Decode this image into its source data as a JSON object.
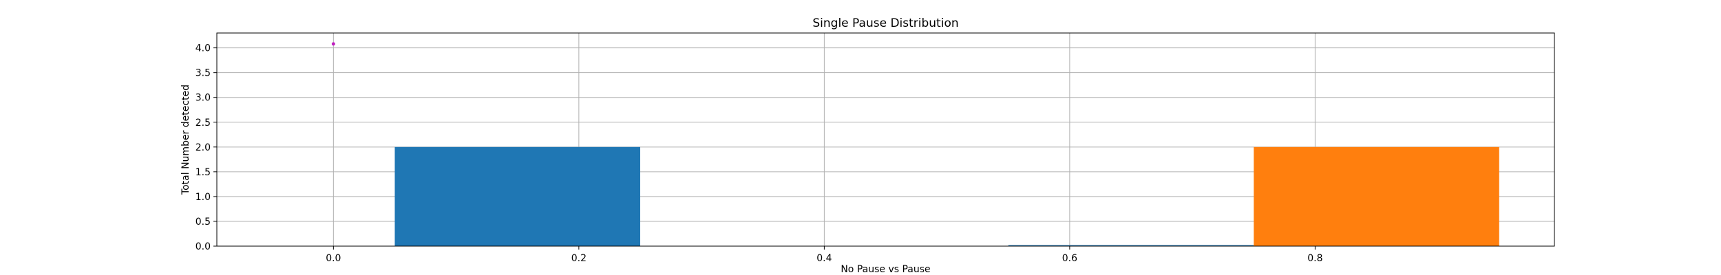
{
  "chart_data": {
    "type": "bar",
    "title": "Single Pause Distribution",
    "xlabel": "No Pause vs Pause",
    "ylabel": "Total Number detected",
    "xlim": [
      -0.095,
      0.995
    ],
    "ylim": [
      0,
      4.3
    ],
    "xticks": [
      0.0,
      0.2,
      0.4,
      0.6,
      0.8
    ],
    "xtick_labels": [
      "0.0",
      "0.2",
      "0.4",
      "0.6",
      "0.8"
    ],
    "yticks": [
      0.0,
      0.5,
      1.0,
      1.5,
      2.0,
      2.5,
      3.0,
      3.5,
      4.0
    ],
    "ytick_labels": [
      "0.0",
      "0.5",
      "1.0",
      "1.5",
      "2.0",
      "2.5",
      "3.0",
      "3.5",
      "4.0"
    ],
    "grid": true,
    "bars": [
      {
        "x_start": 0.05,
        "x_end": 0.25,
        "value": 2,
        "color": "#1f77b4"
      },
      {
        "x_start": 0.55,
        "x_end": 0.75,
        "value": 0.02,
        "color": "#1f77b4"
      },
      {
        "x_start": 0.75,
        "x_end": 0.95,
        "value": 2,
        "color": "#ff7f0e"
      }
    ],
    "points": [
      {
        "x": 0.0,
        "y": 4.08,
        "color": "#c020c0"
      }
    ]
  }
}
